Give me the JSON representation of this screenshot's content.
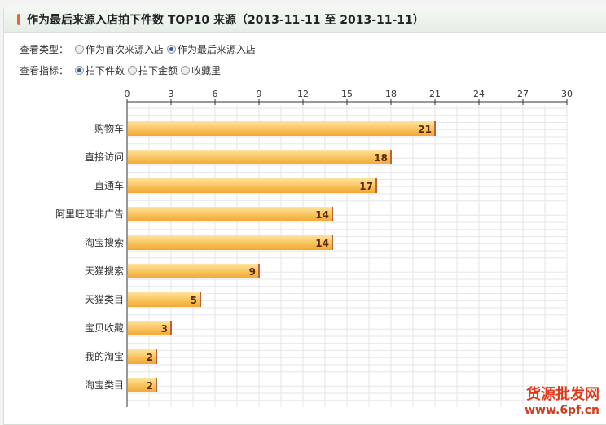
{
  "title": "作为最后来源入店拍下件数 TOP10 来源（2013-11-11 至 2013-11-11）",
  "filters": {
    "type_label": "查看类型：",
    "type_options": [
      {
        "label": "作为首次来源入店",
        "selected": false
      },
      {
        "label": "作为最后来源入店",
        "selected": true
      }
    ],
    "metric_label": "查看指标：",
    "metric_options": [
      {
        "label": "拍下件数",
        "selected": true
      },
      {
        "label": "拍下金额",
        "selected": false
      },
      {
        "label": "收藏里",
        "selected": false
      }
    ]
  },
  "watermark": {
    "text": "货源批发网",
    "url": "www.6pf.cn"
  },
  "colors": {
    "bar": "#f6b94a",
    "bar_edge": "#c0603a"
  },
  "chart_data": {
    "type": "bar",
    "orientation": "horizontal",
    "categories": [
      "购物车",
      "直接访问",
      "直通车",
      "阿里旺旺非广告",
      "淘宝搜索",
      "天猫搜索",
      "天猫类目",
      "宝贝收藏",
      "我的淘宝",
      "淘宝类目"
    ],
    "values": [
      21,
      18,
      17,
      14,
      14,
      9,
      5,
      3,
      2,
      2
    ],
    "xlim": [
      0,
      30
    ],
    "xticks": [
      "0",
      "3",
      "6",
      "9",
      "12",
      "15",
      "18",
      "21",
      "24",
      "27",
      "30"
    ],
    "grid": true,
    "axis_position": "top"
  }
}
